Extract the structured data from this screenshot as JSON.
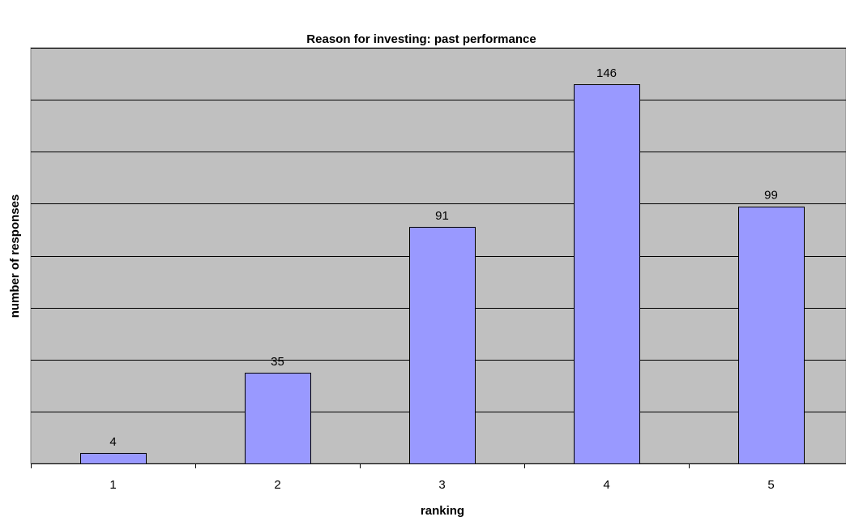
{
  "chart_data": {
    "type": "bar",
    "title": "Reason for investing: past performance",
    "xlabel": "ranking",
    "ylabel": "number of responses",
    "categories": [
      "1",
      "2",
      "3",
      "4",
      "5"
    ],
    "values": [
      4,
      35,
      91,
      146,
      99
    ],
    "data_labels": [
      "4",
      "35",
      "91",
      "146",
      "99"
    ],
    "ylim": [
      0,
      160
    ],
    "y_gridline_step": 20,
    "y_tick_labels_shown": false,
    "grid": true,
    "legend": "none",
    "colors": {
      "plot_background": "#c0c0c0",
      "bar_fill": "#9999ff",
      "bar_stroke": "#000000",
      "gridline": "#000000"
    }
  }
}
